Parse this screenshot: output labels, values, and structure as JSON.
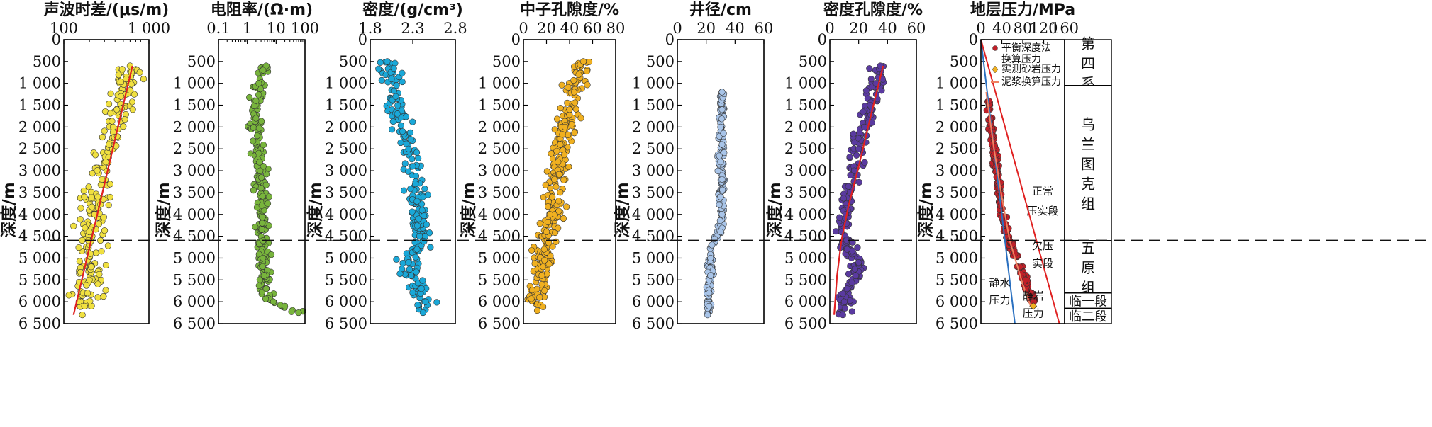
{
  "chart_data": [
    {
      "type": "scatter",
      "title": "声波时差/(μs/m)",
      "ylabel": "深度/m",
      "xscale": "log",
      "xlim": [
        100,
        1000
      ],
      "xticks": [
        "100",
        "1 000"
      ],
      "ylim": [
        0,
        6500
      ],
      "yticks": [
        "0",
        "500",
        "1 000",
        "1 500",
        "2 000",
        "2 500",
        "3 000",
        "3 500",
        "4 000",
        "4 500",
        "5 000",
        "5 500",
        "6 000",
        "6 500"
      ],
      "marker_color": "#f0e040",
      "trend_color": "#e02020",
      "trend": [
        {
          "x": 640,
          "y": 600
        },
        {
          "x": 130,
          "y": 6300
        }
      ],
      "series": [
        {
          "values": [
            {
              "x": 600,
              "y": 600
            },
            {
              "x": 540,
              "y": 900
            },
            {
              "x": 470,
              "y": 1300
            },
            {
              "x": 420,
              "y": 1600
            },
            {
              "x": 380,
              "y": 2000
            },
            {
              "x": 340,
              "y": 2400
            },
            {
              "x": 310,
              "y": 2800
            },
            {
              "x": 280,
              "y": 3200
            },
            {
              "x": 250,
              "y": 3600
            },
            {
              "x": 230,
              "y": 4000
            },
            {
              "x": 200,
              "y": 4400
            },
            {
              "x": 195,
              "y": 4600
            },
            {
              "x": 205,
              "y": 4900
            },
            {
              "x": 210,
              "y": 5200
            },
            {
              "x": 200,
              "y": 5500
            },
            {
              "x": 190,
              "y": 5800
            },
            {
              "x": 175,
              "y": 6100
            },
            {
              "x": 165,
              "y": 6300
            }
          ]
        }
      ]
    },
    {
      "type": "scatter",
      "title": "电阻率/(Ω·m)",
      "ylabel": "深度/m",
      "xscale": "log",
      "xlim": [
        0.1,
        100
      ],
      "xticks": [
        "0.1",
        "1",
        "10",
        "100"
      ],
      "ylim": [
        0,
        6500
      ],
      "yticks": [
        "",
        "500",
        "1 000",
        "1 500",
        "2 000",
        "2 500",
        "3 000",
        "3 500",
        "4 000",
        "4 500",
        "5 000",
        "5 500",
        "6 000",
        "6 500"
      ],
      "marker_color": "#78b43c",
      "series": [
        {
          "values": [
            {
              "x": 4.5,
              "y": 600
            },
            {
              "x": 3.5,
              "y": 700
            },
            {
              "x": 2.5,
              "y": 1000
            },
            {
              "x": 2,
              "y": 1400
            },
            {
              "x": 2,
              "y": 1800
            },
            {
              "x": 2.2,
              "y": 2200
            },
            {
              "x": 2.5,
              "y": 2600
            },
            {
              "x": 2.8,
              "y": 3000
            },
            {
              "x": 3,
              "y": 3400
            },
            {
              "x": 3.2,
              "y": 3800
            },
            {
              "x": 3.3,
              "y": 4200
            },
            {
              "x": 3.5,
              "y": 4600
            },
            {
              "x": 3.5,
              "y": 5000
            },
            {
              "x": 3.8,
              "y": 5400
            },
            {
              "x": 4.5,
              "y": 5700
            },
            {
              "x": 8,
              "y": 6000
            },
            {
              "x": 20,
              "y": 6100
            },
            {
              "x": 60,
              "y": 6250
            }
          ]
        }
      ]
    },
    {
      "type": "scatter",
      "title": "密度/(g/cm³)",
      "ylabel": "深度/m",
      "xlim": [
        1.8,
        2.8
      ],
      "xticks": [
        "1.8",
        "2.3",
        "2.8"
      ],
      "ylim": [
        0,
        6500
      ],
      "yticks": [
        "0",
        "500",
        "1 000",
        "1 500",
        "2 000",
        "2 500",
        "3 000",
        "3 500",
        "4 000",
        "4 500",
        "5 000",
        "5 500",
        "6 000",
        "6 500"
      ],
      "marker_color": "#1aa8d8",
      "series": [
        {
          "values": [
            {
              "x": 2,
              "y": 500
            },
            {
              "x": 2.05,
              "y": 900
            },
            {
              "x": 2.1,
              "y": 1300
            },
            {
              "x": 2.12,
              "y": 1700
            },
            {
              "x": 2.18,
              "y": 2100
            },
            {
              "x": 2.25,
              "y": 2500
            },
            {
              "x": 2.3,
              "y": 2900
            },
            {
              "x": 2.33,
              "y": 3300
            },
            {
              "x": 2.35,
              "y": 3700
            },
            {
              "x": 2.37,
              "y": 4100
            },
            {
              "x": 2.38,
              "y": 4500
            },
            {
              "x": 2.35,
              "y": 4800
            },
            {
              "x": 2.25,
              "y": 5100
            },
            {
              "x": 2.28,
              "y": 5400
            },
            {
              "x": 2.4,
              "y": 5700
            },
            {
              "x": 2.45,
              "y": 6000
            },
            {
              "x": 2.42,
              "y": 6250
            }
          ]
        }
      ]
    },
    {
      "type": "scatter",
      "title": "中子孔隙度/%",
      "ylabel": "深度/m",
      "xlim": [
        0,
        80
      ],
      "xticks": [
        "0",
        "20",
        "40",
        "60",
        "80"
      ],
      "ylim": [
        0,
        6500
      ],
      "yticks": [
        "0",
        "500",
        "1 000",
        "1 500",
        "2 000",
        "2 500",
        "3 000",
        "3 500",
        "4 000",
        "4 500",
        "5 000",
        "5 500",
        "6 000",
        "6 500"
      ],
      "marker_color": "#f0b020",
      "series": [
        {
          "values": [
            {
              "x": 52,
              "y": 500
            },
            {
              "x": 48,
              "y": 800
            },
            {
              "x": 44,
              "y": 1200
            },
            {
              "x": 40,
              "y": 1600
            },
            {
              "x": 36,
              "y": 2000
            },
            {
              "x": 32,
              "y": 2400
            },
            {
              "x": 30,
              "y": 2800
            },
            {
              "x": 27,
              "y": 3200
            },
            {
              "x": 25,
              "y": 3600
            },
            {
              "x": 23,
              "y": 4000
            },
            {
              "x": 20,
              "y": 4400
            },
            {
              "x": 18,
              "y": 4800
            },
            {
              "x": 17,
              "y": 5200
            },
            {
              "x": 16,
              "y": 5600
            },
            {
              "x": 14,
              "y": 5900
            },
            {
              "x": 12,
              "y": 6200
            }
          ]
        }
      ]
    },
    {
      "type": "scatter",
      "title": "井径/cm",
      "ylabel": "深度/m",
      "xlim": [
        0,
        60
      ],
      "xticks": [
        "0",
        "20",
        "40",
        "60"
      ],
      "ylim": [
        0,
        6500
      ],
      "yticks": [
        "0",
        "500",
        "1 000",
        "1 500",
        "2 000",
        "2 500",
        "3 000",
        "3 500",
        "4 000",
        "4 500",
        "5 000",
        "5 500",
        "6 000",
        "6 500"
      ],
      "marker_color": "#a8c4e8",
      "series": [
        {
          "values": [
            {
              "x": 31,
              "y": 1200
            },
            {
              "x": 31,
              "y": 1600
            },
            {
              "x": 30,
              "y": 2000
            },
            {
              "x": 31,
              "y": 2400
            },
            {
              "x": 30,
              "y": 2800
            },
            {
              "x": 31,
              "y": 3200
            },
            {
              "x": 30,
              "y": 3600
            },
            {
              "x": 31,
              "y": 4000
            },
            {
              "x": 30,
              "y": 4400
            },
            {
              "x": 24,
              "y": 4700
            },
            {
              "x": 23,
              "y": 5000
            },
            {
              "x": 23,
              "y": 5400
            },
            {
              "x": 22,
              "y": 5800
            },
            {
              "x": 22,
              "y": 6100
            },
            {
              "x": 21,
              "y": 6300
            }
          ]
        }
      ]
    },
    {
      "type": "scatter",
      "title": "密度孔隙度/%",
      "ylabel": "深度/m",
      "xlim": [
        0,
        60
      ],
      "xticks": [
        "0",
        "20",
        "40",
        "60"
      ],
      "ylim": [
        0,
        6500
      ],
      "yticks": [
        "0",
        "500",
        "1 000",
        "1 500",
        "2 000",
        "2 500",
        "3 000",
        "3 500",
        "4 000",
        "4 500",
        "5 000",
        "5 500",
        "6 000",
        "6 500"
      ],
      "marker_color": "#5a3aa0",
      "trend_color": "#e02020",
      "trend": [
        {
          "x": 37,
          "y": 600
        },
        {
          "x": 28,
          "y": 1800
        },
        {
          "x": 20,
          "y": 2900
        },
        {
          "x": 13,
          "y": 3800
        },
        {
          "x": 8,
          "y": 4600
        },
        {
          "x": 5,
          "y": 5400
        },
        {
          "x": 3,
          "y": 6300
        }
      ],
      "series": [
        {
          "values": [
            {
              "x": 35,
              "y": 600
            },
            {
              "x": 32,
              "y": 1000
            },
            {
              "x": 28,
              "y": 1500
            },
            {
              "x": 24,
              "y": 2000
            },
            {
              "x": 20,
              "y": 2500
            },
            {
              "x": 17,
              "y": 3000
            },
            {
              "x": 14,
              "y": 3500
            },
            {
              "x": 11,
              "y": 4000
            },
            {
              "x": 8,
              "y": 4400
            },
            {
              "x": 12,
              "y": 4800
            },
            {
              "x": 20,
              "y": 5100
            },
            {
              "x": 18,
              "y": 5400
            },
            {
              "x": 12,
              "y": 5700
            },
            {
              "x": 10,
              "y": 6000
            },
            {
              "x": 9,
              "y": 6300
            }
          ]
        }
      ]
    },
    {
      "type": "scatter",
      "title": "地层压力/MPa",
      "ylabel": "深度/m",
      "xlim": [
        0,
        160
      ],
      "xticks": [
        "0",
        "40",
        "80",
        "120",
        "160"
      ],
      "ylim": [
        0,
        6500
      ],
      "yticks": [
        "0",
        "500",
        "1 000",
        "1 500",
        "2 000",
        "2 500",
        "3 000",
        "3 500",
        "4 000",
        "4 500",
        "5 000",
        "5 500",
        "6 000",
        "6 500"
      ],
      "marker_color": "#c02028",
      "legend": [
        {
          "label": "平衡深度法换算压力",
          "color": "#c02028",
          "kind": "dot"
        },
        {
          "label": "实测砂岩压力",
          "color": "#f0b020",
          "kind": "diamond"
        },
        {
          "label": "泥浆换算压力",
          "color": "#f08060",
          "kind": "line"
        }
      ],
      "lines": [
        {
          "name": "静水压力",
          "color": "#2a70c0",
          "points": [
            {
              "x": 0,
              "y": 0
            },
            {
              "x": 65,
              "y": 6500
            }
          ]
        },
        {
          "name": "静岩压力",
          "color": "#e02020",
          "points": [
            {
              "x": 0,
              "y": 0
            },
            {
              "x": 150,
              "y": 6500
            }
          ]
        },
        {
          "name": "泥浆换算压力",
          "color": "#f08060",
          "points": [
            {
              "x": 10,
              "y": 1200
            },
            {
              "x": 25,
              "y": 2500
            },
            {
              "x": 40,
              "y": 3600
            },
            {
              "x": 55,
              "y": 4600
            },
            {
              "x": 80,
              "y": 5600
            },
            {
              "x": 95,
              "y": 6100
            }
          ]
        }
      ],
      "series": [
        {
          "values": [
            {
              "x": 15,
              "y": 1400
            },
            {
              "x": 18,
              "y": 1800
            },
            {
              "x": 22,
              "y": 2200
            },
            {
              "x": 26,
              "y": 2600
            },
            {
              "x": 30,
              "y": 3000
            },
            {
              "x": 34,
              "y": 3400
            },
            {
              "x": 38,
              "y": 3800
            },
            {
              "x": 45,
              "y": 4200
            },
            {
              "x": 55,
              "y": 4600
            },
            {
              "x": 65,
              "y": 4900
            },
            {
              "x": 75,
              "y": 5200
            },
            {
              "x": 85,
              "y": 5500
            },
            {
              "x": 95,
              "y": 5800
            },
            {
              "x": 100,
              "y": 6000
            }
          ]
        }
      ],
      "measured": [
        {
          "x": 100,
          "y": 6100
        }
      ],
      "annotations": [
        {
          "text": "正常",
          "x": 118,
          "y": 3550
        },
        {
          "text": "压实段",
          "x": 118,
          "y": 4000
        },
        {
          "text": "欠压",
          "x": 118,
          "y": 4800
        },
        {
          "text": "实段",
          "x": 118,
          "y": 5200
        },
        {
          "text": "静水",
          "x": 36,
          "y": 5650
        },
        {
          "text": "压力",
          "x": 36,
          "y": 6050
        },
        {
          "text": "静岩",
          "x": 100,
          "y": 5950
        },
        {
          "text": "压力",
          "x": 100,
          "y": 6350
        }
      ],
      "strata": [
        {
          "label": "第四系",
          "from": 0,
          "to": 1050
        },
        {
          "label": "乌兰图克组",
          "from": 1050,
          "to": 4600
        },
        {
          "label": "五原组",
          "from": 4600,
          "to": 5800
        },
        {
          "label": "临一段",
          "from": 5800,
          "to": 6150
        },
        {
          "label": "临二段",
          "from": 6150,
          "to": 6500
        }
      ]
    }
  ],
  "boundary_depth": 4600
}
